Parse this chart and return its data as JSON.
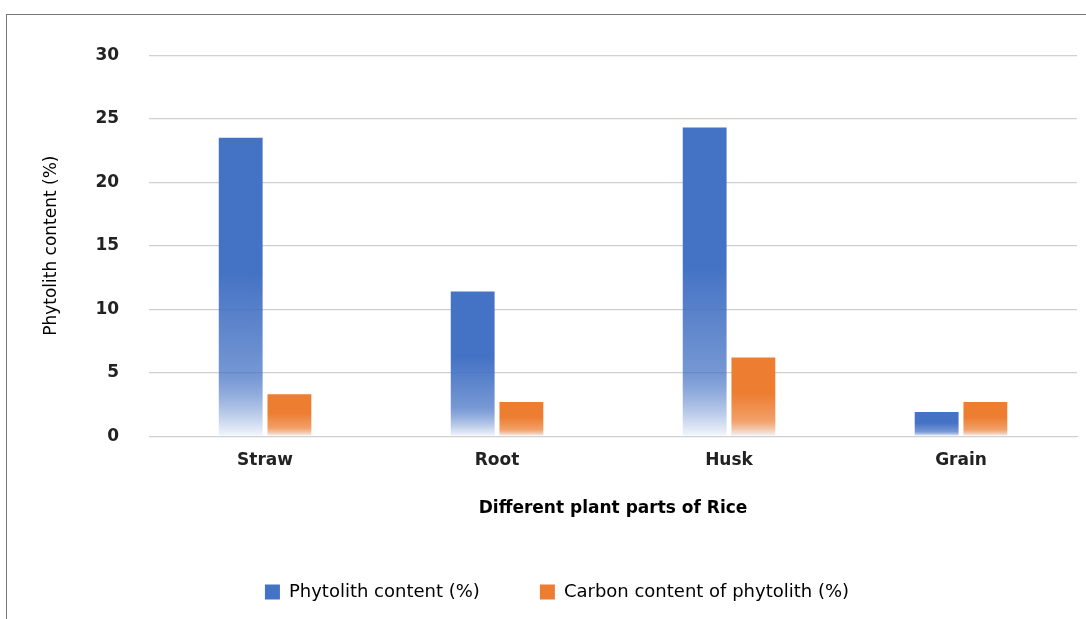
{
  "chart_data": {
    "type": "bar",
    "xlabel": "Different plant parts of Rice",
    "ylabel": "Phytolith content (%)",
    "categories": [
      "Straw",
      "Root",
      "Husk",
      "Grain"
    ],
    "series": [
      {
        "name": "Phytolith content (%)",
        "color": "#4472c4",
        "values": [
          23.5,
          11.4,
          24.3,
          1.9
        ]
      },
      {
        "name": "Carbon content of phytolith (%)",
        "color": "#ed7d31",
        "values": [
          3.3,
          2.7,
          6.2,
          2.7
        ]
      }
    ],
    "ylim": [
      0,
      30
    ],
    "yticks": [
      0,
      5,
      10,
      15,
      20,
      25,
      30
    ],
    "grid": "y",
    "legend": "bottom"
  }
}
